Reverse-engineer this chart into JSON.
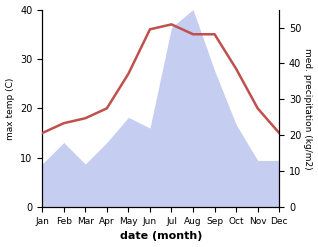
{
  "months": [
    "Jan",
    "Feb",
    "Mar",
    "Apr",
    "May",
    "Jun",
    "Jul",
    "Aug",
    "Sep",
    "Oct",
    "Nov",
    "Dec"
  ],
  "temperature": [
    15,
    17,
    18,
    20,
    27,
    36,
    37,
    35,
    35,
    28,
    20,
    15
  ],
  "precipitation_right": [
    12,
    18,
    12,
    18,
    25,
    22,
    50,
    55,
    38,
    23,
    13,
    13
  ],
  "temp_color": "#c0504d",
  "precip_fill_color": "#c5cdf0",
  "ylabel_left": "max temp (C)",
  "ylabel_right": "med. precipitation (kg/m2)",
  "xlabel": "date (month)",
  "ylim_left": [
    0,
    40
  ],
  "ylim_right": [
    0,
    55
  ],
  "yticks_left": [
    0,
    10,
    20,
    30,
    40
  ],
  "yticks_right": [
    0,
    10,
    20,
    30,
    40,
    50
  ],
  "temp_linewidth": 1.8,
  "background_color": "#ffffff"
}
